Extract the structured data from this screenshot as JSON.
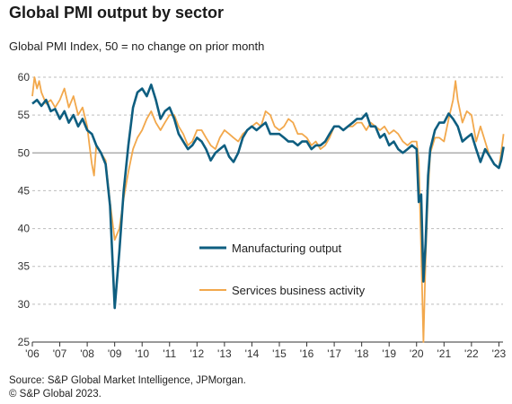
{
  "header": {
    "title": "Global PMI output by sector",
    "subtitle": "Global  PMI Index, 50 = no change on prior month"
  },
  "footer": {
    "source": "Source: S&P Global Market Intelligence, JPMorgan.",
    "copyright": "© S&P Global 2023."
  },
  "chart_data": {
    "type": "line",
    "title": "Global PMI output by sector",
    "subtitle": "Global  PMI Index, 50 = no change on prior month",
    "xlabel": "",
    "ylabel": "",
    "xlim": [
      2006.0,
      2023.15
    ],
    "ylim": [
      25,
      60
    ],
    "yticks": [
      25,
      30,
      35,
      40,
      45,
      50,
      55,
      60
    ],
    "xticks": [
      {
        "value": 2006,
        "label": "'06"
      },
      {
        "value": 2007,
        "label": "'07"
      },
      {
        "value": 2008,
        "label": "'08"
      },
      {
        "value": 2009,
        "label": "'09"
      },
      {
        "value": 2010,
        "label": "'10"
      },
      {
        "value": 2011,
        "label": "'11"
      },
      {
        "value": 2012,
        "label": "'12"
      },
      {
        "value": 2013,
        "label": "'13"
      },
      {
        "value": 2014,
        "label": "'14"
      },
      {
        "value": 2015,
        "label": "'15"
      },
      {
        "value": 2016,
        "label": "'16"
      },
      {
        "value": 2017,
        "label": "'17"
      },
      {
        "value": 2018,
        "label": "'18"
      },
      {
        "value": 2019,
        "label": "'19"
      },
      {
        "value": 2020,
        "label": "'20"
      },
      {
        "value": 2021,
        "label": "'21"
      },
      {
        "value": 2022,
        "label": "'22"
      },
      {
        "value": 2023,
        "label": "'23"
      }
    ],
    "grid": "horizontal dashed",
    "reference_line": 50,
    "legend_position": "center",
    "series": [
      {
        "name": "Manufacturing output",
        "color": "#0e5e80",
        "points": [
          [
            2006.0,
            56.5
          ],
          [
            2006.17,
            57
          ],
          [
            2006.33,
            56.2
          ],
          [
            2006.5,
            57
          ],
          [
            2006.67,
            55.5
          ],
          [
            2006.83,
            55.8
          ],
          [
            2007.0,
            54.5
          ],
          [
            2007.17,
            55.5
          ],
          [
            2007.33,
            54
          ],
          [
            2007.5,
            55
          ],
          [
            2007.67,
            53.5
          ],
          [
            2007.83,
            54.5
          ],
          [
            2008.0,
            53
          ],
          [
            2008.17,
            52.5
          ],
          [
            2008.33,
            51
          ],
          [
            2008.5,
            50
          ],
          [
            2008.67,
            48.5
          ],
          [
            2008.83,
            43
          ],
          [
            2008.92,
            36
          ],
          [
            2009.0,
            29.5
          ],
          [
            2009.17,
            37
          ],
          [
            2009.33,
            45
          ],
          [
            2009.5,
            51
          ],
          [
            2009.67,
            56
          ],
          [
            2009.83,
            58
          ],
          [
            2010.0,
            58.5
          ],
          [
            2010.17,
            57.5
          ],
          [
            2010.33,
            59
          ],
          [
            2010.5,
            57
          ],
          [
            2010.67,
            54.5
          ],
          [
            2010.83,
            55.5
          ],
          [
            2011.0,
            56
          ],
          [
            2011.17,
            54.5
          ],
          [
            2011.33,
            52.5
          ],
          [
            2011.5,
            51.5
          ],
          [
            2011.67,
            50.5
          ],
          [
            2011.83,
            51
          ],
          [
            2012.0,
            52
          ],
          [
            2012.17,
            51.5
          ],
          [
            2012.33,
            50.5
          ],
          [
            2012.5,
            49
          ],
          [
            2012.67,
            50
          ],
          [
            2012.83,
            50.5
          ],
          [
            2013.0,
            51
          ],
          [
            2013.17,
            49.5
          ],
          [
            2013.33,
            48.8
          ],
          [
            2013.5,
            50
          ],
          [
            2013.67,
            52
          ],
          [
            2013.83,
            53
          ],
          [
            2014.0,
            53.5
          ],
          [
            2014.17,
            53
          ],
          [
            2014.33,
            53.5
          ],
          [
            2014.5,
            54
          ],
          [
            2014.67,
            52.5
          ],
          [
            2014.83,
            52.5
          ],
          [
            2015.0,
            52.5
          ],
          [
            2015.17,
            52
          ],
          [
            2015.33,
            51.5
          ],
          [
            2015.5,
            51.5
          ],
          [
            2015.67,
            51
          ],
          [
            2015.83,
            51.5
          ],
          [
            2016.0,
            51.5
          ],
          [
            2016.17,
            50.5
          ],
          [
            2016.33,
            51
          ],
          [
            2016.5,
            51
          ],
          [
            2016.67,
            51.5
          ],
          [
            2016.83,
            52.5
          ],
          [
            2017.0,
            53.5
          ],
          [
            2017.17,
            53.5
          ],
          [
            2017.33,
            53
          ],
          [
            2017.5,
            53.5
          ],
          [
            2017.67,
            54
          ],
          [
            2017.83,
            54.5
          ],
          [
            2018.0,
            54.5
          ],
          [
            2018.17,
            55.2
          ],
          [
            2018.33,
            53.5
          ],
          [
            2018.5,
            53.5
          ],
          [
            2018.67,
            52
          ],
          [
            2018.83,
            52.5
          ],
          [
            2019.0,
            51
          ],
          [
            2019.17,
            51.5
          ],
          [
            2019.33,
            50.5
          ],
          [
            2019.5,
            50
          ],
          [
            2019.67,
            50.5
          ],
          [
            2019.83,
            51
          ],
          [
            2020.0,
            50.5
          ],
          [
            2020.08,
            43.5
          ],
          [
            2020.17,
            44.5
          ],
          [
            2020.25,
            33
          ],
          [
            2020.33,
            38
          ],
          [
            2020.42,
            47
          ],
          [
            2020.5,
            50.5
          ],
          [
            2020.67,
            53
          ],
          [
            2020.83,
            54
          ],
          [
            2021.0,
            54
          ],
          [
            2021.17,
            55.2
          ],
          [
            2021.33,
            54.5
          ],
          [
            2021.5,
            53.5
          ],
          [
            2021.67,
            51.5
          ],
          [
            2021.83,
            52
          ],
          [
            2022.0,
            52.5
          ],
          [
            2022.17,
            50.5
          ],
          [
            2022.33,
            48.8
          ],
          [
            2022.5,
            50.5
          ],
          [
            2022.67,
            49.5
          ],
          [
            2022.83,
            48.5
          ],
          [
            2023.0,
            48
          ],
          [
            2023.08,
            49
          ],
          [
            2023.17,
            50.8
          ]
        ]
      },
      {
        "name": "Services business activity",
        "color": "#f2a84c",
        "points": [
          [
            2006.0,
            57.5
          ],
          [
            2006.08,
            60
          ],
          [
            2006.17,
            58.5
          ],
          [
            2006.25,
            59.5
          ],
          [
            2006.33,
            58
          ],
          [
            2006.5,
            56.5
          ],
          [
            2006.67,
            57
          ],
          [
            2006.83,
            56
          ],
          [
            2007.0,
            57
          ],
          [
            2007.17,
            58.5
          ],
          [
            2007.33,
            56
          ],
          [
            2007.5,
            57.5
          ],
          [
            2007.67,
            55
          ],
          [
            2007.83,
            56
          ],
          [
            2008.0,
            53.5
          ],
          [
            2008.08,
            51
          ],
          [
            2008.17,
            48.5
          ],
          [
            2008.25,
            47
          ],
          [
            2008.33,
            51
          ],
          [
            2008.5,
            50
          ],
          [
            2008.67,
            49
          ],
          [
            2008.83,
            43.5
          ],
          [
            2009.0,
            38.5
          ],
          [
            2009.17,
            40
          ],
          [
            2009.33,
            44
          ],
          [
            2009.5,
            47.5
          ],
          [
            2009.67,
            50.5
          ],
          [
            2009.83,
            52
          ],
          [
            2010.0,
            53
          ],
          [
            2010.17,
            54.5
          ],
          [
            2010.33,
            55.5
          ],
          [
            2010.5,
            54
          ],
          [
            2010.67,
            53
          ],
          [
            2010.83,
            54
          ],
          [
            2011.0,
            55
          ],
          [
            2011.17,
            55
          ],
          [
            2011.33,
            53.5
          ],
          [
            2011.5,
            52.5
          ],
          [
            2011.67,
            51
          ],
          [
            2011.83,
            51.5
          ],
          [
            2012.0,
            53
          ],
          [
            2012.17,
            53
          ],
          [
            2012.33,
            52
          ],
          [
            2012.5,
            51
          ],
          [
            2012.67,
            50.5
          ],
          [
            2012.83,
            52
          ],
          [
            2013.0,
            53
          ],
          [
            2013.17,
            52.5
          ],
          [
            2013.33,
            52
          ],
          [
            2013.5,
            51.5
          ],
          [
            2013.67,
            52.5
          ],
          [
            2013.83,
            53
          ],
          [
            2014.0,
            53.5
          ],
          [
            2014.17,
            54
          ],
          [
            2014.33,
            53.5
          ],
          [
            2014.5,
            55.5
          ],
          [
            2014.67,
            55
          ],
          [
            2014.83,
            53.5
          ],
          [
            2015.0,
            53
          ],
          [
            2015.17,
            53.5
          ],
          [
            2015.33,
            54.5
          ],
          [
            2015.5,
            54
          ],
          [
            2015.67,
            52.5
          ],
          [
            2015.83,
            52.5
          ],
          [
            2016.0,
            52
          ],
          [
            2016.17,
            51
          ],
          [
            2016.33,
            51.5
          ],
          [
            2016.5,
            50.5
          ],
          [
            2016.67,
            51
          ],
          [
            2016.83,
            52
          ],
          [
            2017.0,
            53.5
          ],
          [
            2017.17,
            53.5
          ],
          [
            2017.33,
            53
          ],
          [
            2017.5,
            53.5
          ],
          [
            2017.67,
            53.5
          ],
          [
            2017.83,
            54
          ],
          [
            2018.0,
            54
          ],
          [
            2018.17,
            53
          ],
          [
            2018.33,
            54
          ],
          [
            2018.5,
            53.5
          ],
          [
            2018.67,
            53
          ],
          [
            2018.83,
            53.5
          ],
          [
            2019.0,
            52.5
          ],
          [
            2019.17,
            53
          ],
          [
            2019.33,
            52.5
          ],
          [
            2019.5,
            51.5
          ],
          [
            2019.67,
            51
          ],
          [
            2019.83,
            51.5
          ],
          [
            2020.0,
            51.5
          ],
          [
            2020.08,
            49
          ],
          [
            2020.17,
            37
          ],
          [
            2020.25,
            25
          ],
          [
            2020.33,
            36
          ],
          [
            2020.42,
            45
          ],
          [
            2020.5,
            50
          ],
          [
            2020.67,
            52
          ],
          [
            2020.83,
            52
          ],
          [
            2021.0,
            51.5
          ],
          [
            2021.17,
            54.5
          ],
          [
            2021.33,
            57
          ],
          [
            2021.42,
            59.5
          ],
          [
            2021.5,
            57
          ],
          [
            2021.67,
            54
          ],
          [
            2021.83,
            55.5
          ],
          [
            2022.0,
            55
          ],
          [
            2022.17,
            51.5
          ],
          [
            2022.33,
            53.5
          ],
          [
            2022.5,
            51.5
          ],
          [
            2022.67,
            49.5
          ],
          [
            2022.83,
            48.5
          ],
          [
            2023.0,
            48
          ],
          [
            2023.08,
            50
          ],
          [
            2023.17,
            52.5
          ]
        ]
      }
    ]
  }
}
